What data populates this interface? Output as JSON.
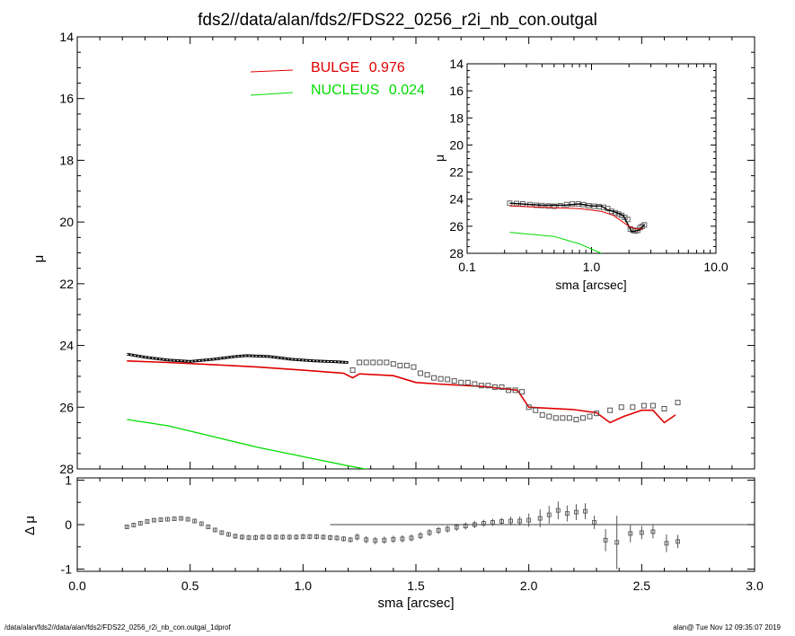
{
  "title": "fds2//data/alan/fds2/FDS22_0256_r2i_nb_con.outgal",
  "footer": {
    "left": "/data/alan/fds2//data/alan/fds2/FDS22_0256_r2i_nb_con.outgal_1dprof",
    "right": "alan@  Tue Nov 12 09:35:07 2019"
  },
  "colors": {
    "bulge": "#e00000",
    "nucleus": "#00dd00",
    "model": "#000000",
    "data": "#555555"
  },
  "chart_data": [
    {
      "type": "line",
      "panel": "main",
      "xlabel": "sma [arcsec]",
      "ylabel": "μ",
      "xlim": [
        0.0,
        3.0
      ],
      "ylim": [
        28,
        14
      ],
      "yticks": [
        "14",
        "16",
        "18",
        "20",
        "22",
        "24",
        "26",
        "28"
      ],
      "legend": [
        {
          "name": "BULGE",
          "value": "0.976",
          "color": "#e00000"
        },
        {
          "name": "NUCLEUS",
          "value": "0.024",
          "color": "#00dd00"
        }
      ],
      "series": [
        {
          "name": "BULGE",
          "x": [
            0.22,
            0.4,
            0.6,
            0.8,
            1.0,
            1.18,
            1.22,
            1.25,
            1.4,
            1.5,
            1.6,
            1.8,
            1.95,
            2.0,
            2.2,
            2.3,
            2.36,
            2.42,
            2.5,
            2.55,
            2.6,
            2.65
          ],
          "y": [
            24.5,
            24.55,
            24.62,
            24.7,
            24.8,
            24.9,
            25.05,
            24.92,
            24.98,
            25.2,
            25.25,
            25.33,
            25.45,
            26.0,
            26.08,
            26.18,
            26.5,
            26.3,
            26.1,
            26.1,
            26.5,
            26.25
          ]
        },
        {
          "name": "NUCLEUS",
          "x": [
            0.22,
            0.4,
            0.6,
            0.8,
            1.0,
            1.2,
            1.35
          ],
          "y": [
            26.4,
            26.6,
            26.95,
            27.3,
            27.6,
            27.9,
            28.1
          ]
        },
        {
          "name": "model",
          "x": [
            0.22,
            0.3,
            0.4,
            0.5,
            0.6,
            0.7,
            0.75,
            0.85,
            0.95,
            1.05,
            1.15,
            1.2
          ],
          "y": [
            24.28,
            24.38,
            24.47,
            24.52,
            24.45,
            24.36,
            24.33,
            24.36,
            24.45,
            24.5,
            24.53,
            24.55
          ]
        }
      ],
      "points": {
        "x": [
          1.22,
          1.25,
          1.28,
          1.31,
          1.34,
          1.37,
          1.4,
          1.43,
          1.46,
          1.49,
          1.52,
          1.55,
          1.58,
          1.61,
          1.64,
          1.67,
          1.7,
          1.73,
          1.76,
          1.79,
          1.82,
          1.85,
          1.88,
          1.91,
          1.94,
          1.97,
          2.0,
          2.03,
          2.06,
          2.09,
          2.12,
          2.15,
          2.18,
          2.21,
          2.24,
          2.27,
          2.3,
          2.36,
          2.41,
          2.46,
          2.51,
          2.55,
          2.6,
          2.66
        ],
        "y": [
          24.8,
          24.55,
          24.55,
          24.55,
          24.55,
          24.55,
          24.6,
          24.65,
          24.65,
          24.7,
          24.9,
          24.95,
          25.05,
          25.08,
          25.1,
          25.15,
          25.2,
          25.2,
          25.25,
          25.3,
          25.3,
          25.35,
          25.35,
          25.45,
          25.45,
          25.5,
          26.0,
          26.1,
          26.25,
          26.3,
          26.35,
          26.35,
          26.35,
          26.4,
          26.35,
          26.3,
          26.2,
          26.1,
          26.0,
          26.0,
          25.95,
          25.95,
          26.05,
          25.85
        ]
      }
    },
    {
      "type": "scatter",
      "panel": "residual",
      "xlabel": "sma [arcsec]",
      "ylabel": "Δ μ",
      "xlim": [
        0.0,
        3.0
      ],
      "ylim": [
        -1.05,
        1.05
      ],
      "xticks": [
        "0.0",
        "0.5",
        "1.0",
        "1.5",
        "2.0",
        "2.5",
        "3.0"
      ],
      "yticks": [
        "1",
        "0",
        "-1"
      ],
      "points": {
        "x": [
          0.22,
          0.25,
          0.28,
          0.31,
          0.34,
          0.37,
          0.4,
          0.43,
          0.46,
          0.49,
          0.52,
          0.55,
          0.58,
          0.61,
          0.64,
          0.67,
          0.7,
          0.73,
          0.76,
          0.79,
          0.82,
          0.85,
          0.88,
          0.91,
          0.94,
          0.97,
          1.0,
          1.03,
          1.06,
          1.09,
          1.12,
          1.15,
          1.18,
          1.21,
          1.24,
          1.28,
          1.32,
          1.36,
          1.4,
          1.44,
          1.48,
          1.52,
          1.56,
          1.6,
          1.64,
          1.68,
          1.72,
          1.76,
          1.8,
          1.84,
          1.88,
          1.92,
          1.96,
          2.0,
          2.05,
          2.09,
          2.13,
          2.17,
          2.21,
          2.25,
          2.29,
          2.34,
          2.39,
          2.45,
          2.5,
          2.55,
          2.61,
          2.66
        ],
        "y": [
          -0.05,
          -0.01,
          0.03,
          0.07,
          0.1,
          0.11,
          0.12,
          0.13,
          0.14,
          0.12,
          0.08,
          0.02,
          -0.05,
          -0.12,
          -0.18,
          -0.22,
          -0.26,
          -0.28,
          -0.29,
          -0.29,
          -0.28,
          -0.28,
          -0.28,
          -0.28,
          -0.28,
          -0.28,
          -0.27,
          -0.27,
          -0.27,
          -0.28,
          -0.29,
          -0.3,
          -0.32,
          -0.34,
          -0.28,
          -0.34,
          -0.36,
          -0.35,
          -0.33,
          -0.32,
          -0.3,
          -0.25,
          -0.18,
          -0.13,
          -0.1,
          -0.06,
          -0.03,
          0.0,
          0.03,
          0.05,
          0.07,
          0.08,
          0.08,
          0.1,
          0.14,
          0.22,
          0.32,
          0.25,
          0.28,
          0.3,
          0.05,
          -0.35,
          -0.4,
          -0.2,
          -0.18,
          -0.16,
          -0.42,
          -0.38
        ],
        "err": [
          0.04,
          0.04,
          0.04,
          0.04,
          0.04,
          0.04,
          0.04,
          0.04,
          0.05,
          0.05,
          0.05,
          0.05,
          0.05,
          0.05,
          0.05,
          0.05,
          0.06,
          0.06,
          0.06,
          0.06,
          0.06,
          0.06,
          0.06,
          0.06,
          0.06,
          0.06,
          0.06,
          0.06,
          0.06,
          0.06,
          0.06,
          0.06,
          0.06,
          0.06,
          0.08,
          0.08,
          0.08,
          0.08,
          0.08,
          0.08,
          0.08,
          0.08,
          0.08,
          0.08,
          0.08,
          0.08,
          0.08,
          0.08,
          0.08,
          0.08,
          0.08,
          0.1,
          0.1,
          0.15,
          0.2,
          0.2,
          0.2,
          0.18,
          0.18,
          0.18,
          0.15,
          0.25,
          0.6,
          0.2,
          0.15,
          0.15,
          0.2,
          0.15
        ]
      },
      "zero_line_from": 1.12
    },
    {
      "type": "line",
      "panel": "inset",
      "xlabel": "sma [arcsec]",
      "ylabel": "μ",
      "xscale": "log",
      "xlim": [
        0.1,
        10.0
      ],
      "ylim": [
        28,
        14
      ],
      "xticks": [
        "0.1",
        "1.0",
        "10.0"
      ],
      "yticks": [
        "14",
        "16",
        "18",
        "20",
        "22",
        "24",
        "26",
        "28"
      ],
      "series": [
        {
          "name": "BULGE",
          "x": [
            0.22,
            0.4,
            0.8,
            1.2,
            1.5,
            2.0,
            2.3,
            2.6
          ],
          "y": [
            24.5,
            24.6,
            24.7,
            24.9,
            25.2,
            26.0,
            26.2,
            26.2
          ]
        },
        {
          "name": "NUCLEUS",
          "x": [
            0.22,
            0.5,
            0.8,
            1.2,
            1.4
          ],
          "y": [
            26.45,
            26.75,
            27.3,
            28.0,
            28.2
          ]
        },
        {
          "name": "model",
          "x": [
            0.22,
            0.4,
            0.6,
            0.8,
            1.0,
            1.2,
            1.35,
            1.5,
            1.8,
            2.1,
            2.4,
            2.66
          ],
          "y": [
            24.3,
            24.45,
            24.45,
            24.35,
            24.5,
            24.5,
            24.8,
            24.9,
            25.2,
            26.4,
            26.3,
            25.9
          ]
        }
      ],
      "points": {
        "x": [
          0.22,
          0.25,
          0.28,
          0.32,
          0.36,
          0.4,
          0.45,
          0.5,
          0.56,
          0.63,
          0.7,
          0.78,
          0.86,
          0.95,
          1.05,
          1.15,
          1.25,
          1.35,
          1.45,
          1.55,
          1.65,
          1.75,
          1.85,
          1.95,
          2.05,
          2.15,
          2.25,
          2.35,
          2.45,
          2.55,
          2.66
        ],
        "y": [
          24.3,
          24.32,
          24.35,
          24.4,
          24.45,
          24.47,
          24.5,
          24.52,
          24.48,
          24.4,
          24.36,
          24.35,
          24.4,
          24.48,
          24.52,
          24.55,
          24.6,
          24.7,
          24.9,
          25.0,
          25.1,
          25.2,
          25.35,
          25.5,
          26.2,
          26.3,
          26.35,
          26.3,
          26.1,
          26.0,
          25.9
        ]
      }
    }
  ]
}
